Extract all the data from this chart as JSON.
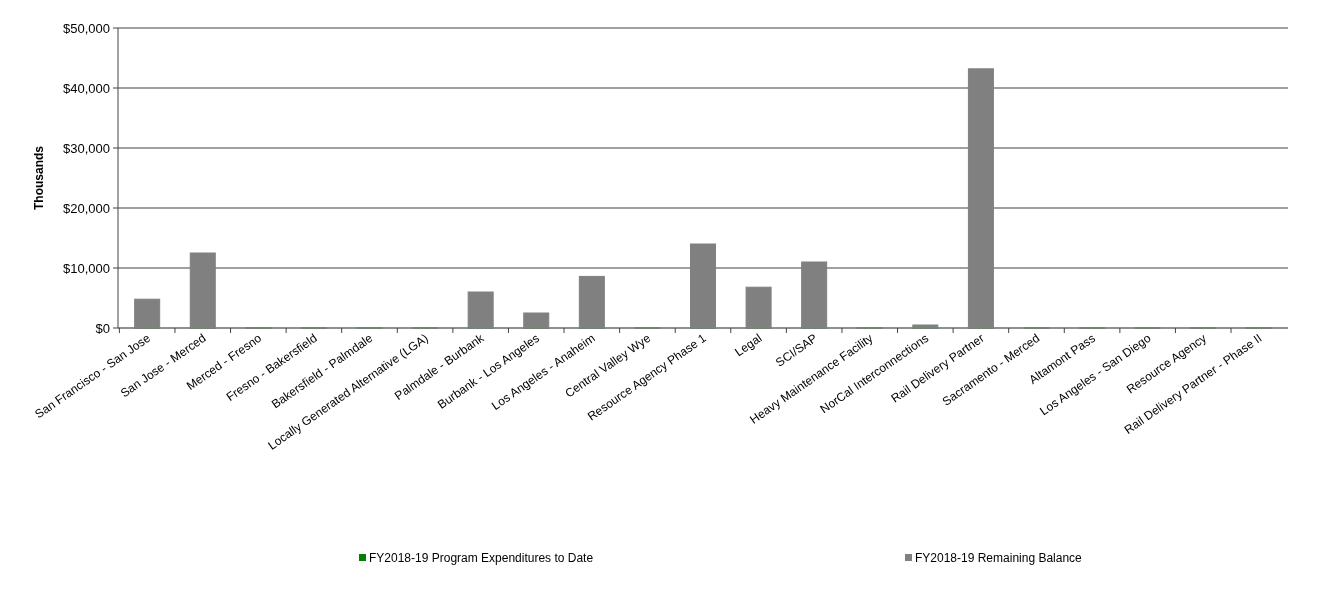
{
  "chart_data": {
    "type": "bar",
    "stacked": true,
    "ylabel": "Thousands",
    "categories": [
      "San Francisco - San Jose",
      "San Jose - Merced",
      "Merced - Fresno",
      "Fresno - Bakersfield",
      "Bakersfield - Palmdale",
      "Locally Generated Alternative (LGA)",
      "Palmdale - Burbank",
      "Burbank - Los Angeles",
      "Los Angeles - Anaheim",
      "Central Valley Wye",
      "Resource Agency Phase 1",
      "Legal",
      "SCI/SAP",
      "Heavy Maintenance Facility",
      "NorCal Interconnections",
      "Rail Delivery Partner",
      "Sacramento - Merced",
      "Altamont Pass",
      "Los Angeles - San Diego",
      "Resource Agency",
      "Rail Delivery Partner  - Phase II"
    ],
    "series": [
      {
        "name": "FY2018-19 Program Expenditures to Date",
        "color": "#008000",
        "values": [
          0,
          0,
          0,
          0,
          0,
          0,
          0,
          0,
          0,
          0,
          0,
          0,
          0,
          0,
          0,
          0,
          0,
          0,
          0,
          0,
          0
        ]
      },
      {
        "name": "FY2018-19 Remaining Balance",
        "color": "#808080",
        "values": [
          4800,
          12500,
          0,
          0,
          0,
          0,
          6000,
          2500,
          8600,
          0,
          14000,
          6800,
          11000,
          0,
          500,
          43200,
          0,
          0,
          0,
          0,
          0
        ]
      }
    ],
    "ylim": [
      0,
      50000
    ],
    "yticks": [
      {
        "value": 0,
        "label": "$0"
      },
      {
        "value": 10000,
        "label": "$10,000"
      },
      {
        "value": 20000,
        "label": "$20,000"
      },
      {
        "value": 30000,
        "label": "$30,000"
      },
      {
        "value": 40000,
        "label": "$40,000"
      },
      {
        "value": 50000,
        "label": "$50,000"
      }
    ],
    "grid": "y",
    "legend": "bottom"
  }
}
